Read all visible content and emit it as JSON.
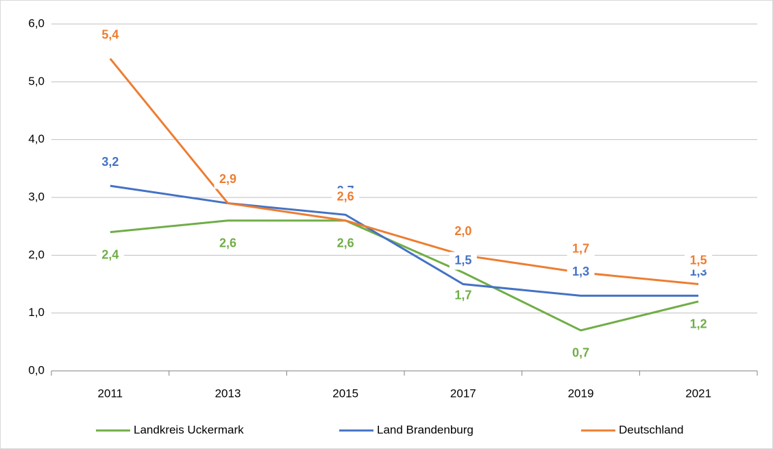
{
  "chart_data": {
    "type": "line",
    "categories": [
      "2011",
      "2013",
      "2015",
      "2017",
      "2019",
      "2021"
    ],
    "series": [
      {
        "name": "Landkreis Uckermark",
        "color": "#70ad47",
        "values": [
          2.4,
          2.6,
          2.6,
          1.7,
          0.7,
          1.2
        ],
        "value_labels": [
          "2,4",
          "2,6",
          "2,6",
          "1,7",
          "0,7",
          "1,2"
        ]
      },
      {
        "name": "Land Brandenburg",
        "color": "#4472c4",
        "values": [
          3.2,
          2.9,
          2.7,
          1.5,
          1.3,
          1.3
        ],
        "value_labels": [
          "3,2",
          "2,9",
          "2,7",
          "1,5",
          "1,3",
          "1,3"
        ]
      },
      {
        "name": "Deutschland",
        "color": "#ed7d31",
        "values": [
          5.4,
          2.9,
          2.6,
          2.0,
          1.7,
          1.5
        ],
        "value_labels": [
          "5,4",
          "2,9",
          "2,6",
          "2,0",
          "1,7",
          "1,5"
        ]
      }
    ],
    "ylim": [
      0,
      6
    ],
    "yticks": [
      {
        "value": 0,
        "label": "0,0"
      },
      {
        "value": 1,
        "label": "1,0"
      },
      {
        "value": 2,
        "label": "2,0"
      },
      {
        "value": 3,
        "label": "3,0"
      },
      {
        "value": 4,
        "label": "4,0"
      },
      {
        "value": 5,
        "label": "5,0"
      },
      {
        "value": 6,
        "label": "6,0"
      }
    ],
    "grid": true,
    "legend": "bottom"
  }
}
